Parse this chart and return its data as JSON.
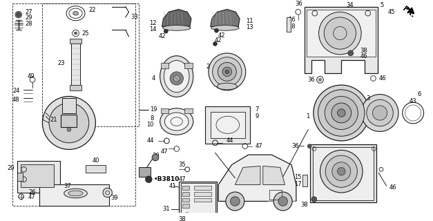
{
  "bg_color": "#ffffff",
  "line_color": "#1a1a1a",
  "text_color": "#000000",
  "font_size": 6.0,
  "fig_width": 6.27,
  "fig_height": 3.2,
  "dpi": 100,
  "gray_light": "#cccccc",
  "gray_mid": "#aaaaaa",
  "gray_dark": "#555555",
  "gray_hatch": "#888888"
}
